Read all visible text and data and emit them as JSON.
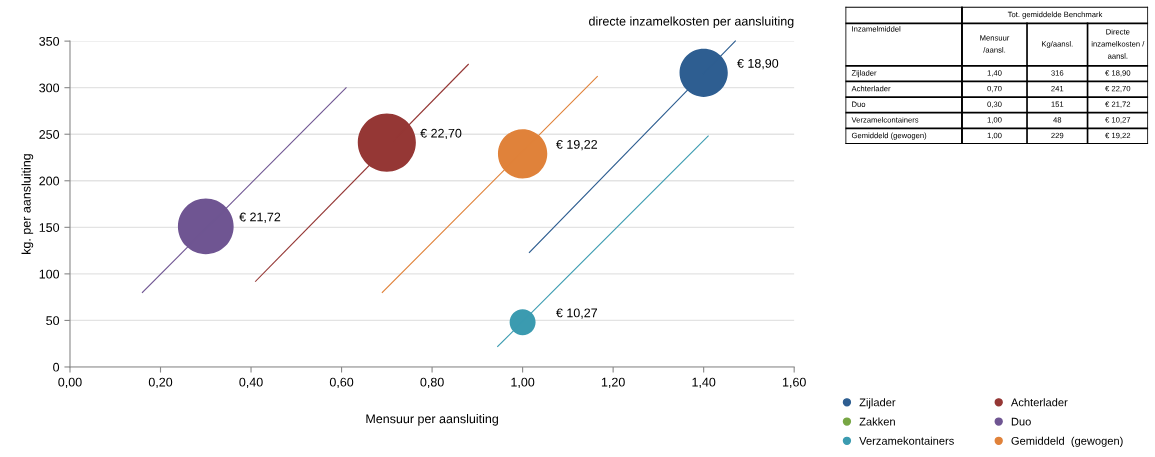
{
  "chart_data": [
    {
      "type": "bubble",
      "xlabel": "Mensuur per aansluiting",
      "ylabel": "kg. per aansluiting",
      "annotations": [
        "directe inzamelkosten per aansluiting",
        {
          "text": "€ 18,90",
          "x": 1.4,
          "y": 316
        },
        {
          "text": "€ 22,70",
          "x": 0.7,
          "y": 241
        },
        {
          "text": "€ 21,72",
          "x": 0.3,
          "y": 151
        },
        {
          "text": "€ 10,27",
          "x": 1.0,
          "y": 48
        },
        {
          "text": "€ 19,22",
          "x": 1.0,
          "y": 229
        }
      ],
      "xlim": [
        0,
        1.6
      ],
      "xticks": [
        {
          "value": 0,
          "label": "0,00"
        },
        {
          "value": 0.2,
          "label": "0,20"
        },
        {
          "value": 0.4,
          "label": "0,40"
        },
        {
          "value": 0.6,
          "label": "0,60"
        },
        {
          "value": 0.8,
          "label": "0,80"
        },
        {
          "value": 1.0,
          "label": "1,00"
        },
        {
          "value": 1.2,
          "label": "1,20"
        },
        {
          "value": 1.4,
          "label": "1,40"
        },
        {
          "value": 1.6,
          "label": "1,60"
        }
      ],
      "ylim": [
        0,
        350
      ],
      "yticks": [
        0,
        50,
        100,
        150,
        200,
        250,
        300,
        350
      ],
      "grid": "y",
      "legend": "bottom right",
      "series": [
        {
          "name": "Zijlader",
          "color": "#2e5e91",
          "x": [
            1.4
          ],
          "values": [
            316
          ],
          "sizes": [
            0.69
          ]
        },
        {
          "name": "Achterlader",
          "color": "#953735",
          "x": [
            0.7
          ],
          "values": [
            241
          ],
          "sizes": [
            1
          ]
        },
        {
          "name": "Zakken",
          "color": "#77a644"
        },
        {
          "name": "Duo",
          "color": "#6f5592",
          "x": [
            0.3
          ],
          "values": [
            151
          ],
          "sizes": [
            0.92
          ]
        },
        {
          "name": "Verzamekontainers",
          "color": "#3b9bb0",
          "x": [
            1.0
          ],
          "values": [
            48
          ],
          "sizes": [
            0.2
          ]
        },
        {
          "name": "Gemiddeld  (gewogen)",
          "color": "#e0823a",
          "x": [
            1.0
          ],
          "values": [
            229
          ],
          "sizes": [
            0.72
          ]
        },
        {
          "type": "line",
          "color": "#2e5e91",
          "x": [
            1.015,
            1.47
          ],
          "values": [
            123,
            350
          ]
        },
        {
          "type": "line",
          "color": "#953735",
          "x": [
            0.41,
            0.88
          ],
          "values": [
            92,
            325
          ]
        },
        {
          "type": "line",
          "color": "#6f5592",
          "x": [
            0.16,
            0.61
          ],
          "values": [
            80,
            300
          ]
        },
        {
          "type": "line",
          "color": "#3b9bb0",
          "x": [
            0.945,
            1.41
          ],
          "values": [
            22,
            248
          ]
        },
        {
          "type": "line",
          "color": "#e0823a",
          "x": [
            0.69,
            1.165
          ],
          "values": [
            80,
            312
          ]
        }
      ]
    },
    {
      "type": "other",
      "title": "Tot. gemiddelde Benchmark",
      "annotations": [
        "Inzamelmiddel",
        "Mensuur\n/aansl.",
        "Kg/aansl.",
        "Directe\ninzamelkosten /\naansl.",
        "Zijlader",
        "1,40",
        "316",
        "€ 18,90",
        "Achterlader",
        "0,70",
        "241",
        "€ 22,70",
        "Duo",
        "0,30",
        "151",
        "€ 21,72",
        "Verzamelcontainers",
        "1,00",
        "48",
        "€ 10,27",
        "Gemiddeld (gewogen)",
        "1,00",
        "229",
        "€ 19,22"
      ]
    }
  ]
}
